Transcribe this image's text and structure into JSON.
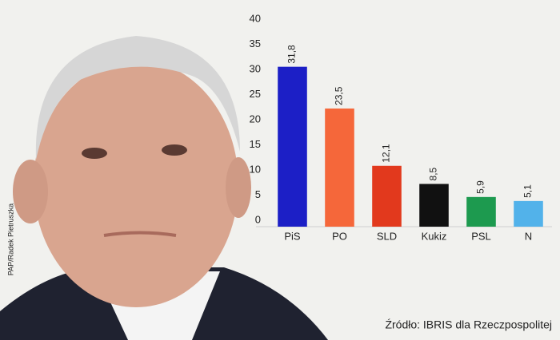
{
  "chart_data": {
    "type": "bar",
    "categories": [
      "PiS",
      "PO",
      "SLD",
      "Kukiz",
      "PSL",
      "N"
    ],
    "values": [
      31.8,
      23.5,
      12.1,
      8.5,
      5.9,
      5.1
    ],
    "value_labels": [
      "31,8",
      "23,5",
      "12,1",
      "8,5",
      "5,9",
      "5,1"
    ],
    "colors": [
      "#1c1fc6",
      "#f5673a",
      "#e2391d",
      "#111111",
      "#1d9a4f",
      "#52b2ea"
    ],
    "ylim": [
      0,
      40
    ],
    "yticks": [
      0,
      5,
      10,
      15,
      20,
      25,
      30,
      35,
      40
    ],
    "grid": false,
    "source": "Źródło: IBRIS dla Rzeczpospolitej"
  },
  "photo_credit": "PAP/Radek Pietruszka"
}
